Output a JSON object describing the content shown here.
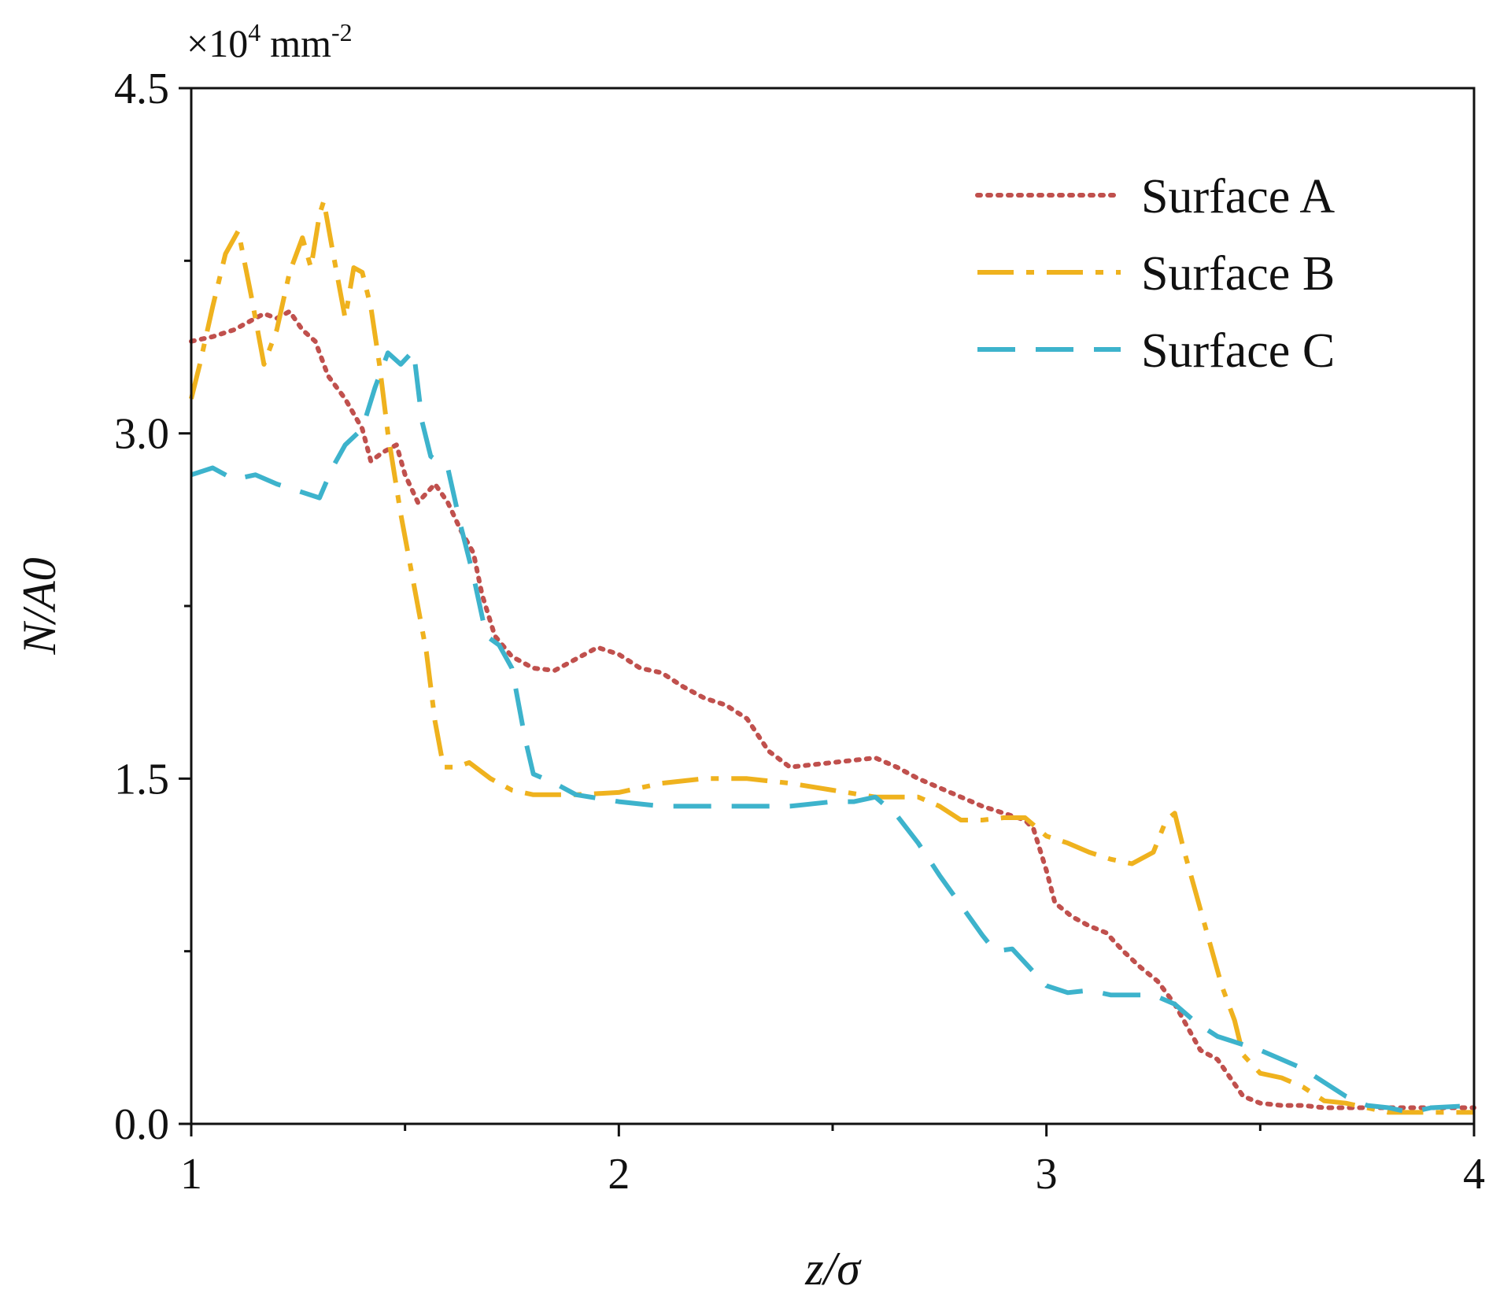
{
  "chart_data": {
    "type": "line",
    "title": "",
    "xlabel": "z/σ",
    "ylabel": "N/A0",
    "y_multiplier": "×10",
    "y_multiplier_exp": "4",
    "y_unit": "mm",
    "y_unit_exp": "-2",
    "xlim": [
      1,
      4
    ],
    "ylim": [
      0,
      4.5
    ],
    "x_ticks": [
      {
        "value": 1,
        "label": "1"
      },
      {
        "value": 2,
        "label": "2"
      },
      {
        "value": 3,
        "label": "3"
      },
      {
        "value": 4,
        "label": "4"
      }
    ],
    "x_minor_ticks": [
      1.5,
      2.5,
      3.5
    ],
    "y_ticks": [
      {
        "value": 0,
        "label": "0.0"
      },
      {
        "value": 1.5,
        "label": "1.5"
      },
      {
        "value": 3.0,
        "label": "3.0"
      },
      {
        "value": 4.5,
        "label": "4.5"
      }
    ],
    "y_minor_ticks": [
      0.75,
      2.25,
      3.75
    ],
    "grid": false,
    "legend_position": "top-right",
    "series": [
      {
        "name": "Surface A",
        "color": "#c0504d",
        "dash": "dotted",
        "points": [
          [
            1.0,
            3.4
          ],
          [
            1.05,
            3.42
          ],
          [
            1.1,
            3.45
          ],
          [
            1.13,
            3.48
          ],
          [
            1.17,
            3.52
          ],
          [
            1.2,
            3.5
          ],
          [
            1.23,
            3.53
          ],
          [
            1.26,
            3.45
          ],
          [
            1.29,
            3.4
          ],
          [
            1.32,
            3.25
          ],
          [
            1.36,
            3.15
          ],
          [
            1.4,
            3.02
          ],
          [
            1.42,
            2.88
          ],
          [
            1.45,
            2.92
          ],
          [
            1.48,
            2.95
          ],
          [
            1.5,
            2.82
          ],
          [
            1.53,
            2.7
          ],
          [
            1.57,
            2.78
          ],
          [
            1.6,
            2.7
          ],
          [
            1.63,
            2.58
          ],
          [
            1.66,
            2.48
          ],
          [
            1.68,
            2.3
          ],
          [
            1.71,
            2.12
          ],
          [
            1.75,
            2.03
          ],
          [
            1.8,
            1.98
          ],
          [
            1.85,
            1.97
          ],
          [
            1.9,
            2.02
          ],
          [
            1.95,
            2.07
          ],
          [
            2.0,
            2.04
          ],
          [
            2.05,
            1.98
          ],
          [
            2.1,
            1.96
          ],
          [
            2.15,
            1.9
          ],
          [
            2.2,
            1.85
          ],
          [
            2.25,
            1.82
          ],
          [
            2.3,
            1.76
          ],
          [
            2.35,
            1.62
          ],
          [
            2.4,
            1.55
          ],
          [
            2.45,
            1.56
          ],
          [
            2.5,
            1.57
          ],
          [
            2.55,
            1.58
          ],
          [
            2.6,
            1.59
          ],
          [
            2.65,
            1.55
          ],
          [
            2.7,
            1.5
          ],
          [
            2.75,
            1.46
          ],
          [
            2.8,
            1.42
          ],
          [
            2.85,
            1.38
          ],
          [
            2.9,
            1.35
          ],
          [
            2.95,
            1.32
          ],
          [
            2.97,
            1.28
          ],
          [
            3.0,
            1.1
          ],
          [
            3.02,
            0.96
          ],
          [
            3.06,
            0.9
          ],
          [
            3.1,
            0.86
          ],
          [
            3.14,
            0.83
          ],
          [
            3.18,
            0.75
          ],
          [
            3.22,
            0.68
          ],
          [
            3.26,
            0.62
          ],
          [
            3.3,
            0.52
          ],
          [
            3.33,
            0.42
          ],
          [
            3.36,
            0.32
          ],
          [
            3.4,
            0.28
          ],
          [
            3.43,
            0.2
          ],
          [
            3.46,
            0.12
          ],
          [
            3.5,
            0.09
          ],
          [
            3.55,
            0.08
          ],
          [
            3.6,
            0.08
          ],
          [
            3.65,
            0.07
          ],
          [
            3.7,
            0.07
          ],
          [
            3.8,
            0.07
          ],
          [
            3.9,
            0.07
          ],
          [
            4.0,
            0.07
          ]
        ]
      },
      {
        "name": "Surface B",
        "color": "#efb21e",
        "dash": "dashdot",
        "points": [
          [
            1.0,
            3.15
          ],
          [
            1.02,
            3.3
          ],
          [
            1.05,
            3.55
          ],
          [
            1.08,
            3.78
          ],
          [
            1.11,
            3.88
          ],
          [
            1.14,
            3.6
          ],
          [
            1.17,
            3.3
          ],
          [
            1.2,
            3.45
          ],
          [
            1.23,
            3.7
          ],
          [
            1.26,
            3.85
          ],
          [
            1.28,
            3.72
          ],
          [
            1.3,
            3.95
          ],
          [
            1.31,
            4.01
          ],
          [
            1.33,
            3.8
          ],
          [
            1.36,
            3.5
          ],
          [
            1.38,
            3.72
          ],
          [
            1.4,
            3.7
          ],
          [
            1.42,
            3.55
          ],
          [
            1.44,
            3.3
          ],
          [
            1.46,
            3.0
          ],
          [
            1.49,
            2.65
          ],
          [
            1.52,
            2.35
          ],
          [
            1.55,
            2.05
          ],
          [
            1.57,
            1.75
          ],
          [
            1.59,
            1.55
          ],
          [
            1.62,
            1.55
          ],
          [
            1.65,
            1.57
          ],
          [
            1.7,
            1.5
          ],
          [
            1.75,
            1.45
          ],
          [
            1.8,
            1.43
          ],
          [
            1.9,
            1.43
          ],
          [
            2.0,
            1.44
          ],
          [
            2.1,
            1.48
          ],
          [
            2.2,
            1.5
          ],
          [
            2.3,
            1.5
          ],
          [
            2.4,
            1.48
          ],
          [
            2.5,
            1.45
          ],
          [
            2.6,
            1.42
          ],
          [
            2.7,
            1.42
          ],
          [
            2.75,
            1.38
          ],
          [
            2.8,
            1.32
          ],
          [
            2.85,
            1.32
          ],
          [
            2.9,
            1.33
          ],
          [
            2.95,
            1.33
          ],
          [
            3.0,
            1.25
          ],
          [
            3.05,
            1.22
          ],
          [
            3.1,
            1.18
          ],
          [
            3.15,
            1.15
          ],
          [
            3.2,
            1.13
          ],
          [
            3.25,
            1.18
          ],
          [
            3.28,
            1.32
          ],
          [
            3.3,
            1.35
          ],
          [
            3.32,
            1.2
          ],
          [
            3.35,
            1.0
          ],
          [
            3.38,
            0.8
          ],
          [
            3.41,
            0.6
          ],
          [
            3.44,
            0.45
          ],
          [
            3.46,
            0.3
          ],
          [
            3.5,
            0.22
          ],
          [
            3.55,
            0.2
          ],
          [
            3.6,
            0.16
          ],
          [
            3.65,
            0.1
          ],
          [
            3.7,
            0.09
          ],
          [
            3.8,
            0.05
          ],
          [
            3.9,
            0.05
          ],
          [
            4.0,
            0.05
          ]
        ]
      },
      {
        "name": "Surface C",
        "color": "#3db3cc",
        "dash": "dashed",
        "points": [
          [
            1.0,
            2.82
          ],
          [
            1.05,
            2.85
          ],
          [
            1.1,
            2.8
          ],
          [
            1.15,
            2.82
          ],
          [
            1.2,
            2.78
          ],
          [
            1.25,
            2.75
          ],
          [
            1.3,
            2.72
          ],
          [
            1.33,
            2.85
          ],
          [
            1.36,
            2.95
          ],
          [
            1.4,
            3.02
          ],
          [
            1.43,
            3.2
          ],
          [
            1.46,
            3.35
          ],
          [
            1.49,
            3.3
          ],
          [
            1.52,
            3.36
          ],
          [
            1.54,
            3.05
          ],
          [
            1.56,
            2.9
          ],
          [
            1.6,
            2.85
          ],
          [
            1.63,
            2.6
          ],
          [
            1.66,
            2.38
          ],
          [
            1.69,
            2.12
          ],
          [
            1.72,
            2.08
          ],
          [
            1.75,
            1.98
          ],
          [
            1.78,
            1.68
          ],
          [
            1.8,
            1.52
          ],
          [
            1.85,
            1.48
          ],
          [
            1.9,
            1.43
          ],
          [
            2.0,
            1.4
          ],
          [
            2.1,
            1.38
          ],
          [
            2.2,
            1.38
          ],
          [
            2.4,
            1.38
          ],
          [
            2.5,
            1.4
          ],
          [
            2.55,
            1.4
          ],
          [
            2.6,
            1.42
          ],
          [
            2.65,
            1.34
          ],
          [
            2.7,
            1.22
          ],
          [
            2.75,
            1.08
          ],
          [
            2.8,
            0.95
          ],
          [
            2.85,
            0.82
          ],
          [
            2.88,
            0.75
          ],
          [
            2.92,
            0.76
          ],
          [
            2.96,
            0.68
          ],
          [
            3.0,
            0.6
          ],
          [
            3.05,
            0.57
          ],
          [
            3.1,
            0.58
          ],
          [
            3.15,
            0.56
          ],
          [
            3.2,
            0.56
          ],
          [
            3.25,
            0.56
          ],
          [
            3.3,
            0.52
          ],
          [
            3.35,
            0.44
          ],
          [
            3.4,
            0.38
          ],
          [
            3.45,
            0.35
          ],
          [
            3.5,
            0.32
          ],
          [
            3.55,
            0.28
          ],
          [
            3.6,
            0.24
          ],
          [
            3.65,
            0.18
          ],
          [
            3.7,
            0.12
          ],
          [
            3.75,
            0.08
          ],
          [
            3.8,
            0.07
          ],
          [
            3.85,
            0.05
          ],
          [
            3.9,
            0.07
          ],
          [
            4.0,
            0.08
          ]
        ]
      }
    ]
  }
}
